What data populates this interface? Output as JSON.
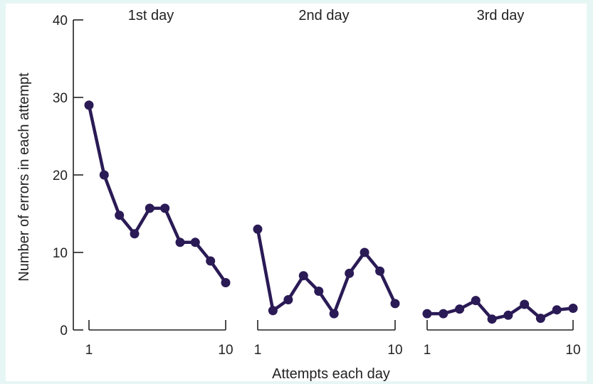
{
  "chart_data": {
    "type": "line",
    "xlabel": "Attempts each day",
    "ylabel": "Number of errors in each attempt",
    "ylim": [
      0,
      40
    ],
    "yticks": [
      0,
      10,
      20,
      30,
      40
    ],
    "xlim": [
      1,
      10
    ],
    "xtick_labels": [
      "1",
      "10"
    ],
    "color": "#2a1a55",
    "grid": false,
    "legend": "none",
    "panels": [
      {
        "title": "1st day",
        "series": [
          {
            "x": [
              1,
              2,
              3,
              4,
              5,
              6,
              7,
              8,
              9,
              10
            ],
            "values": [
              29,
              20,
              14.8,
              12.4,
              15.7,
              15.7,
              11.3,
              11.3,
              8.9,
              6.1
            ]
          }
        ]
      },
      {
        "title": "2nd day",
        "series": [
          {
            "x": [
              1,
              2,
              3,
              4,
              5,
              6,
              7,
              8,
              9,
              10
            ],
            "values": [
              13,
              2.5,
              3.9,
              7,
              5,
              2.1,
              7.3,
              10,
              7.6,
              3.4
            ]
          }
        ]
      },
      {
        "title": "3rd day",
        "series": [
          {
            "x": [
              1,
              2,
              3,
              4,
              5,
              6,
              7,
              8,
              9,
              10
            ],
            "values": [
              2.1,
              2.1,
              2.7,
              3.8,
              1.4,
              1.9,
              3.3,
              1.5,
              2.6,
              2.8
            ]
          }
        ]
      }
    ]
  }
}
